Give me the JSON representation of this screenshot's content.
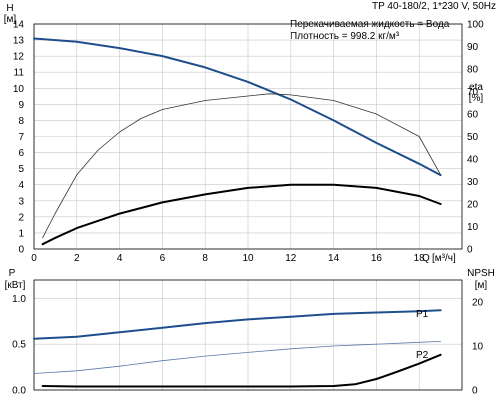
{
  "header": {
    "title": "TP 40-180/2, 1*230 V, 50Hz",
    "info_line1": "Перекачиваемая жидкость = Вода",
    "info_line2": "Плотность = 998.2 кг/м³"
  },
  "chart_data": [
    {
      "type": "line",
      "y_label": "H",
      "y_unit": "[м]",
      "y2_label": "eta",
      "y2_unit": "[%]",
      "x_label": "Q",
      "x_unit": "[м³/ч]",
      "xlim": [
        0,
        20
      ],
      "ylim": [
        0,
        14
      ],
      "y2lim": [
        0,
        100
      ],
      "x_ticks": [
        0,
        2,
        4,
        6,
        8,
        10,
        12,
        14,
        16,
        18
      ],
      "y_ticks": [
        0,
        1,
        2,
        3,
        4,
        5,
        6,
        7,
        8,
        9,
        10,
        11,
        12,
        13,
        14
      ],
      "y2_ticks": [
        0,
        10,
        20,
        30,
        40,
        50,
        60,
        70,
        80,
        90,
        100
      ],
      "grid": true,
      "series": [
        {
          "color": "#1f4e8c",
          "axis": "left",
          "x": [
            0,
            2,
            4,
            6,
            8,
            10,
            12,
            14,
            16,
            18,
            19
          ],
          "y": [
            13.1,
            12.9,
            12.5,
            12.0,
            11.3,
            10.4,
            9.3,
            8.0,
            6.6,
            5.3,
            4.6
          ]
        },
        {
          "color": "#333333",
          "axis": "right",
          "x": [
            0.4,
            1,
            2,
            3,
            4,
            5,
            6,
            8,
            10,
            11,
            12,
            14,
            16,
            18,
            19
          ],
          "y": [
            5,
            16,
            33,
            44,
            52,
            58,
            62,
            66,
            68,
            69,
            68.5,
            66,
            60,
            50,
            33
          ]
        },
        {
          "color": "#000000",
          "axis": "left",
          "x": [
            0.4,
            1,
            2,
            4,
            6,
            8,
            10,
            12,
            14,
            16,
            18,
            19
          ],
          "y": [
            0.3,
            0.7,
            1.3,
            2.2,
            2.9,
            3.4,
            3.8,
            4.0,
            4.0,
            3.8,
            3.3,
            2.8
          ]
        }
      ]
    },
    {
      "type": "line",
      "y_label": "P",
      "y_unit": "[кВт]",
      "y2_label": "NPSH",
      "y2_unit": "[м]",
      "xlim": [
        0,
        20
      ],
      "ylim": [
        0,
        1.2
      ],
      "y2lim": [
        0,
        25
      ],
      "y_ticks": [
        0.0,
        0.5,
        1.0
      ],
      "y2_ticks": [
        0,
        10,
        20
      ],
      "grid": true,
      "series": [
        {
          "name": "P1",
          "color": "#1f4e8c",
          "axis": "left",
          "x": [
            0,
            2,
            4,
            6,
            8,
            10,
            12,
            14,
            16,
            18,
            19
          ],
          "y": [
            0.56,
            0.58,
            0.63,
            0.68,
            0.73,
            0.77,
            0.8,
            0.83,
            0.845,
            0.86,
            0.87
          ]
        },
        {
          "name": "P2",
          "color": "#5a78a8",
          "axis": "left",
          "x": [
            0,
            2,
            4,
            6,
            8,
            10,
            12,
            14,
            16,
            18,
            19
          ],
          "y": [
            0.18,
            0.21,
            0.26,
            0.32,
            0.37,
            0.41,
            0.45,
            0.48,
            0.5,
            0.52,
            0.53
          ]
        },
        {
          "color": "#000000",
          "axis": "right",
          "x": [
            0.4,
            2,
            4,
            6,
            8,
            10,
            12,
            14,
            15,
            16,
            17,
            18,
            19
          ],
          "y": [
            0.9,
            0.8,
            0.8,
            0.8,
            0.8,
            0.8,
            0.8,
            0.9,
            1.3,
            2.5,
            4.2,
            6.0,
            8.0
          ]
        }
      ]
    }
  ]
}
